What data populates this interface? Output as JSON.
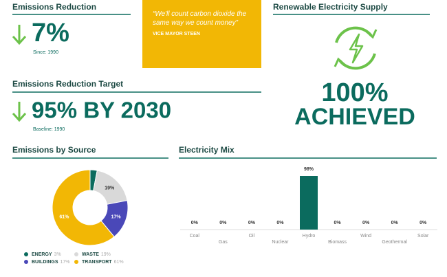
{
  "emissions_reduction": {
    "title": "Emissions Reduction",
    "value": "7%",
    "note": "Since: 1990"
  },
  "quote": {
    "text": "“We'll count carbon dioxide the same way we count money”",
    "author": "VICE MAYOR STEEN"
  },
  "renewable": {
    "title": "Renewable Electricity Supply",
    "value": "100%",
    "status": "ACHIEVED"
  },
  "target": {
    "title": "Emissions Reduction Target",
    "value": "95% BY 2030",
    "note": "Baseline: 1990"
  },
  "chart_data": [
    {
      "type": "donut",
      "title": "Emissions by Source",
      "categories": [
        "ENERGY",
        "WASTE",
        "BUILDINGS",
        "TRANSPORT"
      ],
      "values": [
        3,
        19,
        17,
        61
      ],
      "value_labels": [
        "3%",
        "19%",
        "17%",
        "61%"
      ],
      "colors": [
        "#0b6b5e",
        "#d9d9d9",
        "#4a48b8",
        "#f2b705"
      ]
    },
    {
      "type": "bar",
      "title": "Electricity Mix",
      "categories": [
        "Coal",
        "Gas",
        "Oil",
        "Nuclear",
        "Hydro",
        "Biomass",
        "Wind",
        "Geothermal",
        "Solar"
      ],
      "values": [
        0,
        0,
        0,
        0,
        98,
        0,
        0,
        0,
        0
      ],
      "value_labels": [
        "0%",
        "0%",
        "0%",
        "0%",
        "98%",
        "0%",
        "0%",
        "0%",
        "0%"
      ],
      "color": "#0b6b5e"
    }
  ]
}
